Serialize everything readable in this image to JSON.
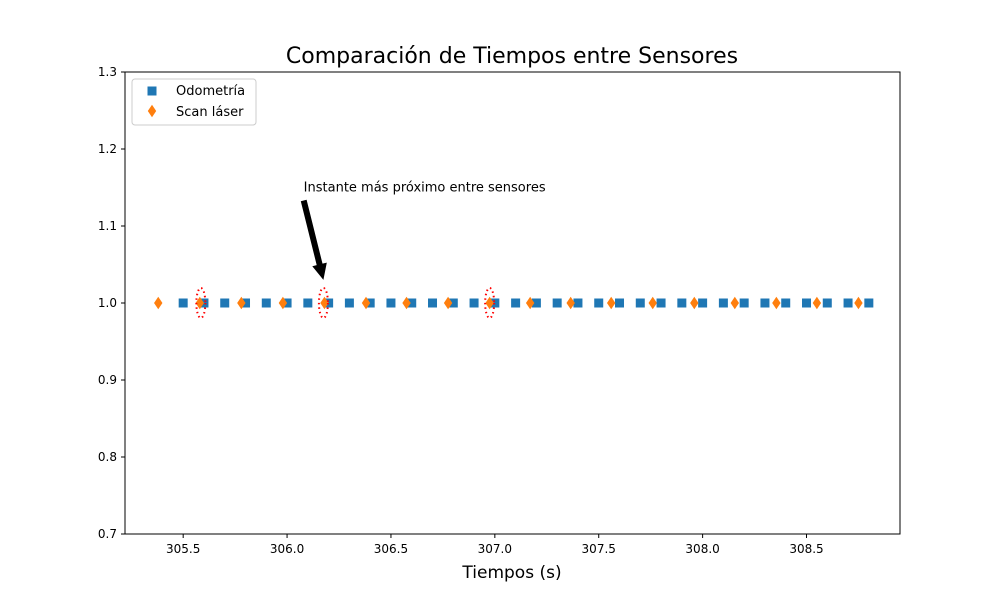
{
  "chart_data": {
    "type": "scatter",
    "title": "Comparación de Tiempos entre Sensores",
    "xlabel": "Tiempos (s)",
    "ylabel": "",
    "xlim": [
      305.22,
      308.95
    ],
    "ylim": [
      0.7,
      1.3
    ],
    "xticks": [
      305.5,
      306.0,
      306.5,
      307.0,
      307.5,
      308.0,
      308.5
    ],
    "xtick_labels": [
      "305.5",
      "306.0",
      "306.5",
      "307.0",
      "307.5",
      "308.0",
      "308.5"
    ],
    "yticks": [
      0.7,
      0.8,
      0.9,
      1.0,
      1.1,
      1.2,
      1.3
    ],
    "ytick_labels": [
      "0.7",
      "0.8",
      "0.9",
      "1.0",
      "1.1",
      "1.2",
      "1.3"
    ],
    "grid": false,
    "legend": {
      "position": "top-left"
    },
    "series": [
      {
        "name": "Odometría",
        "marker": "square",
        "color": "#1f77b4",
        "x": [
          305.5,
          305.6,
          305.7,
          305.8,
          305.9,
          306.0,
          306.1,
          306.2,
          306.3,
          306.4,
          306.5,
          306.6,
          306.7,
          306.8,
          306.9,
          307.0,
          307.1,
          307.2,
          307.3,
          307.4,
          307.5,
          307.6,
          307.7,
          307.8,
          307.9,
          308.0,
          308.1,
          308.2,
          308.3,
          308.4,
          308.5,
          308.6,
          308.7,
          308.8
        ],
        "y": [
          1.0,
          1.0,
          1.0,
          1.0,
          1.0,
          1.0,
          1.0,
          1.0,
          1.0,
          1.0,
          1.0,
          1.0,
          1.0,
          1.0,
          1.0,
          1.0,
          1.0,
          1.0,
          1.0,
          1.0,
          1.0,
          1.0,
          1.0,
          1.0,
          1.0,
          1.0,
          1.0,
          1.0,
          1.0,
          1.0,
          1.0,
          1.0,
          1.0,
          1.0
        ]
      },
      {
        "name": "Scan láser",
        "marker": "thin_diamond",
        "color": "#ff7f0e",
        "x": [
          305.38,
          305.58,
          305.78,
          305.98,
          306.18,
          306.38,
          306.575,
          306.775,
          306.975,
          307.17,
          307.365,
          307.56,
          307.76,
          307.96,
          308.155,
          308.355,
          308.55,
          308.75
        ],
        "y": [
          1.0,
          1.0,
          1.0,
          1.0,
          1.0,
          1.0,
          1.0,
          1.0,
          1.0,
          1.0,
          1.0,
          1.0,
          1.0,
          1.0,
          1.0,
          1.0,
          1.0,
          1.0
        ]
      }
    ],
    "highlights": {
      "color": "#ff0000",
      "style": "dotted-ellipse",
      "x": [
        305.585,
        306.175,
        306.975
      ],
      "y": 1.0
    },
    "annotation": {
      "text": "Instante más próximo entre sensores",
      "text_at": [
        306.08,
        1.15
      ],
      "arrow_to": [
        306.175,
        1.03
      ],
      "arrow_color": "#000000"
    }
  }
}
